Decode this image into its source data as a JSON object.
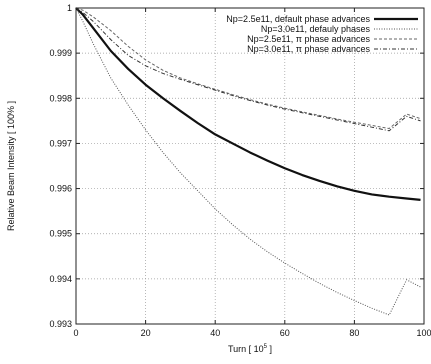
{
  "chart_data": {
    "type": "line",
    "title": "",
    "xlabel": "Turn [ 10",
    "xlabel_exp": "5",
    "xlabel_close": " ]",
    "ylabel": "Relative Beam Intensity [ 100% ]",
    "xlim": [
      0,
      100
    ],
    "ylim": [
      0.993,
      1.0
    ],
    "xticks": [
      0,
      20,
      40,
      60,
      80,
      100
    ],
    "xtick_labels": [
      "0",
      "20",
      "40",
      "60",
      "80",
      "100"
    ],
    "yticks": [
      0.993,
      0.994,
      0.995,
      0.996,
      0.997,
      0.998,
      0.999,
      1.0
    ],
    "ytick_labels": [
      "0.993",
      "0.994",
      "0.995",
      "0.996",
      "0.997",
      "0.998",
      "0.999",
      "1"
    ],
    "grid": true,
    "legend_position": "top-right",
    "series": [
      {
        "name": "Np=2.5e11, default  phase advances",
        "color": "#111111",
        "style": "solid-thick",
        "x": [
          0,
          2,
          5,
          10,
          15,
          20,
          25,
          30,
          35,
          40,
          45,
          50,
          55,
          60,
          65,
          70,
          75,
          80,
          85,
          90,
          95,
          99
        ],
        "y": [
          1.0,
          0.99985,
          0.99955,
          0.99905,
          0.99865,
          0.9983,
          0.998,
          0.99772,
          0.99745,
          0.9972,
          0.997,
          0.9968,
          0.99662,
          0.99645,
          0.9963,
          0.99617,
          0.99605,
          0.99595,
          0.99587,
          0.99582,
          0.99578,
          0.99575
        ]
      },
      {
        "name": "Np=3.0e11, defauly phases",
        "color": "#555555",
        "style": "dotted",
        "x": [
          0,
          2,
          5,
          10,
          15,
          20,
          25,
          30,
          35,
          40,
          45,
          50,
          55,
          60,
          65,
          70,
          75,
          80,
          85,
          90,
          95,
          99
        ],
        "y": [
          1.0,
          0.9997,
          0.9992,
          0.99845,
          0.99785,
          0.9973,
          0.9968,
          0.99635,
          0.99595,
          0.99555,
          0.9952,
          0.99488,
          0.9946,
          0.99435,
          0.99412,
          0.9939,
          0.9937,
          0.99352,
          0.99335,
          0.9932,
          0.99398,
          0.99382
        ]
      },
      {
        "name": "Np=2.5e11, π phase advances",
        "color": "#666666",
        "style": "dashed",
        "x": [
          0,
          2,
          5,
          10,
          15,
          20,
          25,
          30,
          35,
          40,
          45,
          50,
          55,
          60,
          65,
          70,
          75,
          80,
          85,
          90,
          95,
          99
        ],
        "y": [
          1.0,
          0.99995,
          0.9998,
          0.9995,
          0.99915,
          0.99885,
          0.99862,
          0.99845,
          0.99832,
          0.9982,
          0.99808,
          0.99797,
          0.99787,
          0.99778,
          0.9977,
          0.99762,
          0.99754,
          0.99747,
          0.9974,
          0.99733,
          0.99765,
          0.99755
        ]
      },
      {
        "name": "Np=3.0e11, π phase advances",
        "color": "#333333",
        "style": "dash-dot",
        "x": [
          0,
          2,
          5,
          10,
          15,
          20,
          25,
          30,
          35,
          40,
          45,
          50,
          55,
          60,
          65,
          70,
          75,
          80,
          85,
          90,
          95,
          99
        ],
        "y": [
          1.0,
          0.9999,
          0.9997,
          0.9993,
          0.99895,
          0.99872,
          0.99855,
          0.99842,
          0.9983,
          0.99818,
          0.99806,
          0.99795,
          0.99785,
          0.99776,
          0.99768,
          0.9976,
          0.99752,
          0.99744,
          0.99736,
          0.99728,
          0.9976,
          0.9975
        ]
      }
    ]
  }
}
